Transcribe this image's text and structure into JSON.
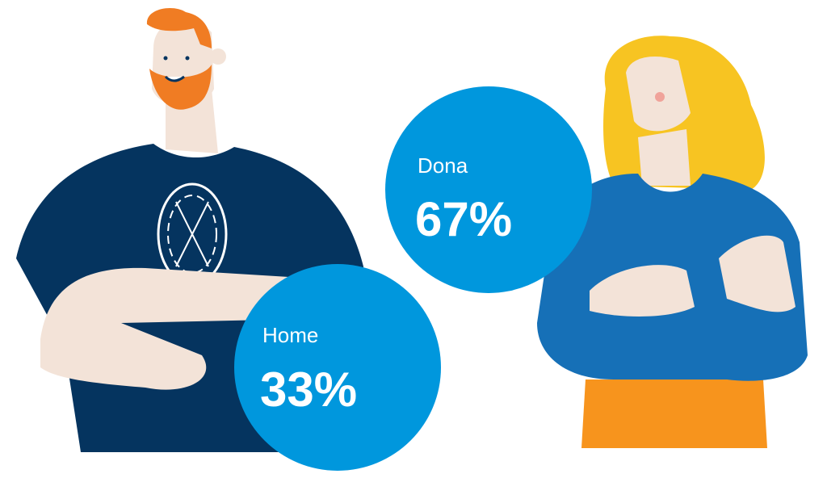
{
  "stats": [
    {
      "label": "Home",
      "value": "33%"
    },
    {
      "label": "Dona",
      "value": "67%"
    }
  ]
}
